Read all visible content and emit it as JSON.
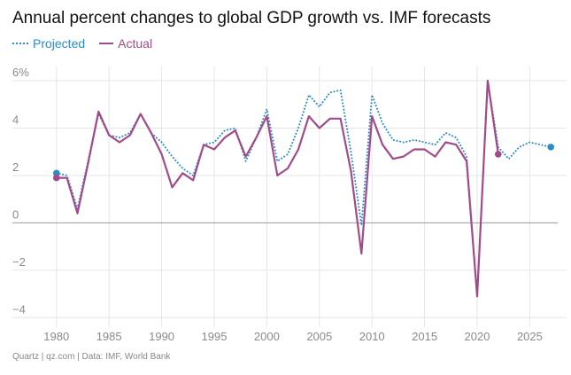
{
  "header": {
    "title": "Annual percent changes to global GDP growth vs. IMF forecasts"
  },
  "legend": {
    "projected_label": "Projected",
    "actual_label": "Actual"
  },
  "footer": {
    "source": "Quartz | qz.com | Data: IMF, World Bank"
  },
  "colors": {
    "projected": "#2b8cc4",
    "actual": "#a24b8a",
    "grid": "#e6e6e6",
    "zero_line": "#9a9a9a",
    "tick_label": "#8a8a8a"
  },
  "chart_data": {
    "type": "line",
    "title": "Annual percent changes to global GDP growth vs. IMF forecasts",
    "xlabel": "",
    "ylabel": "",
    "xlim": [
      1978,
      2028.5
    ],
    "ylim": [
      -4.4,
      6.6
    ],
    "x_ticks": [
      1980,
      1985,
      1990,
      1995,
      2000,
      2005,
      2010,
      2015,
      2020,
      2025
    ],
    "x_tick_labels": [
      "1980",
      "1985",
      "1990",
      "1995",
      "2000",
      "2005",
      "2010",
      "2015",
      "2020",
      "2025"
    ],
    "y_ticks": [
      6,
      4,
      2,
      0,
      -2,
      -4
    ],
    "y_tick_labels": [
      "6%",
      "4",
      "2",
      "0",
      "−2",
      "−4"
    ],
    "grid": true,
    "legend_position": "top-left",
    "series": [
      {
        "name": "Projected",
        "style": "dotted",
        "x": [
          1980,
          1981,
          1982,
          1983,
          1984,
          1985,
          1986,
          1987,
          1988,
          1989,
          1990,
          1991,
          1992,
          1993,
          1994,
          1995,
          1996,
          1997,
          1998,
          1999,
          2000,
          2001,
          2002,
          2003,
          2004,
          2005,
          2006,
          2007,
          2008,
          2009,
          2010,
          2011,
          2012,
          2013,
          2014,
          2015,
          2016,
          2017,
          2018,
          2019,
          2020,
          2021,
          2022,
          2023,
          2024,
          2025,
          2026,
          2027
        ],
        "values": [
          2.1,
          2.0,
          0.6,
          2.6,
          4.6,
          3.7,
          3.6,
          3.8,
          4.6,
          3.8,
          3.4,
          2.8,
          2.3,
          2.0,
          3.3,
          3.4,
          3.9,
          4.0,
          2.6,
          3.6,
          4.8,
          2.6,
          2.9,
          4.0,
          5.4,
          4.9,
          5.5,
          5.6,
          3.0,
          -0.1,
          5.4,
          4.2,
          3.5,
          3.4,
          3.5,
          3.4,
          3.3,
          3.8,
          3.6,
          2.8,
          -3.1,
          6.0,
          3.2,
          2.7,
          3.2,
          3.4,
          3.3,
          3.2
        ],
        "endpoints_marked": [
          1980,
          2027
        ]
      },
      {
        "name": "Actual",
        "style": "solid",
        "x": [
          1980,
          1981,
          1982,
          1983,
          1984,
          1985,
          1986,
          1987,
          1988,
          1989,
          1990,
          1991,
          1992,
          1993,
          1994,
          1995,
          1996,
          1997,
          1998,
          1999,
          2000,
          2001,
          2002,
          2003,
          2004,
          2005,
          2006,
          2007,
          2008,
          2009,
          2010,
          2011,
          2012,
          2013,
          2014,
          2015,
          2016,
          2017,
          2018,
          2019,
          2020,
          2021,
          2022
        ],
        "values": [
          1.9,
          1.9,
          0.4,
          2.5,
          4.7,
          3.7,
          3.4,
          3.7,
          4.6,
          3.8,
          2.9,
          1.5,
          2.1,
          1.8,
          3.3,
          3.1,
          3.6,
          3.9,
          2.8,
          3.6,
          4.5,
          2.0,
          2.3,
          3.1,
          4.5,
          4.0,
          4.4,
          4.4,
          2.2,
          -1.3,
          4.5,
          3.3,
          2.7,
          2.8,
          3.1,
          3.1,
          2.8,
          3.4,
          3.3,
          2.6,
          -3.1,
          6.0,
          2.9
        ],
        "endpoints_marked": [
          1980,
          2022
        ]
      }
    ]
  }
}
